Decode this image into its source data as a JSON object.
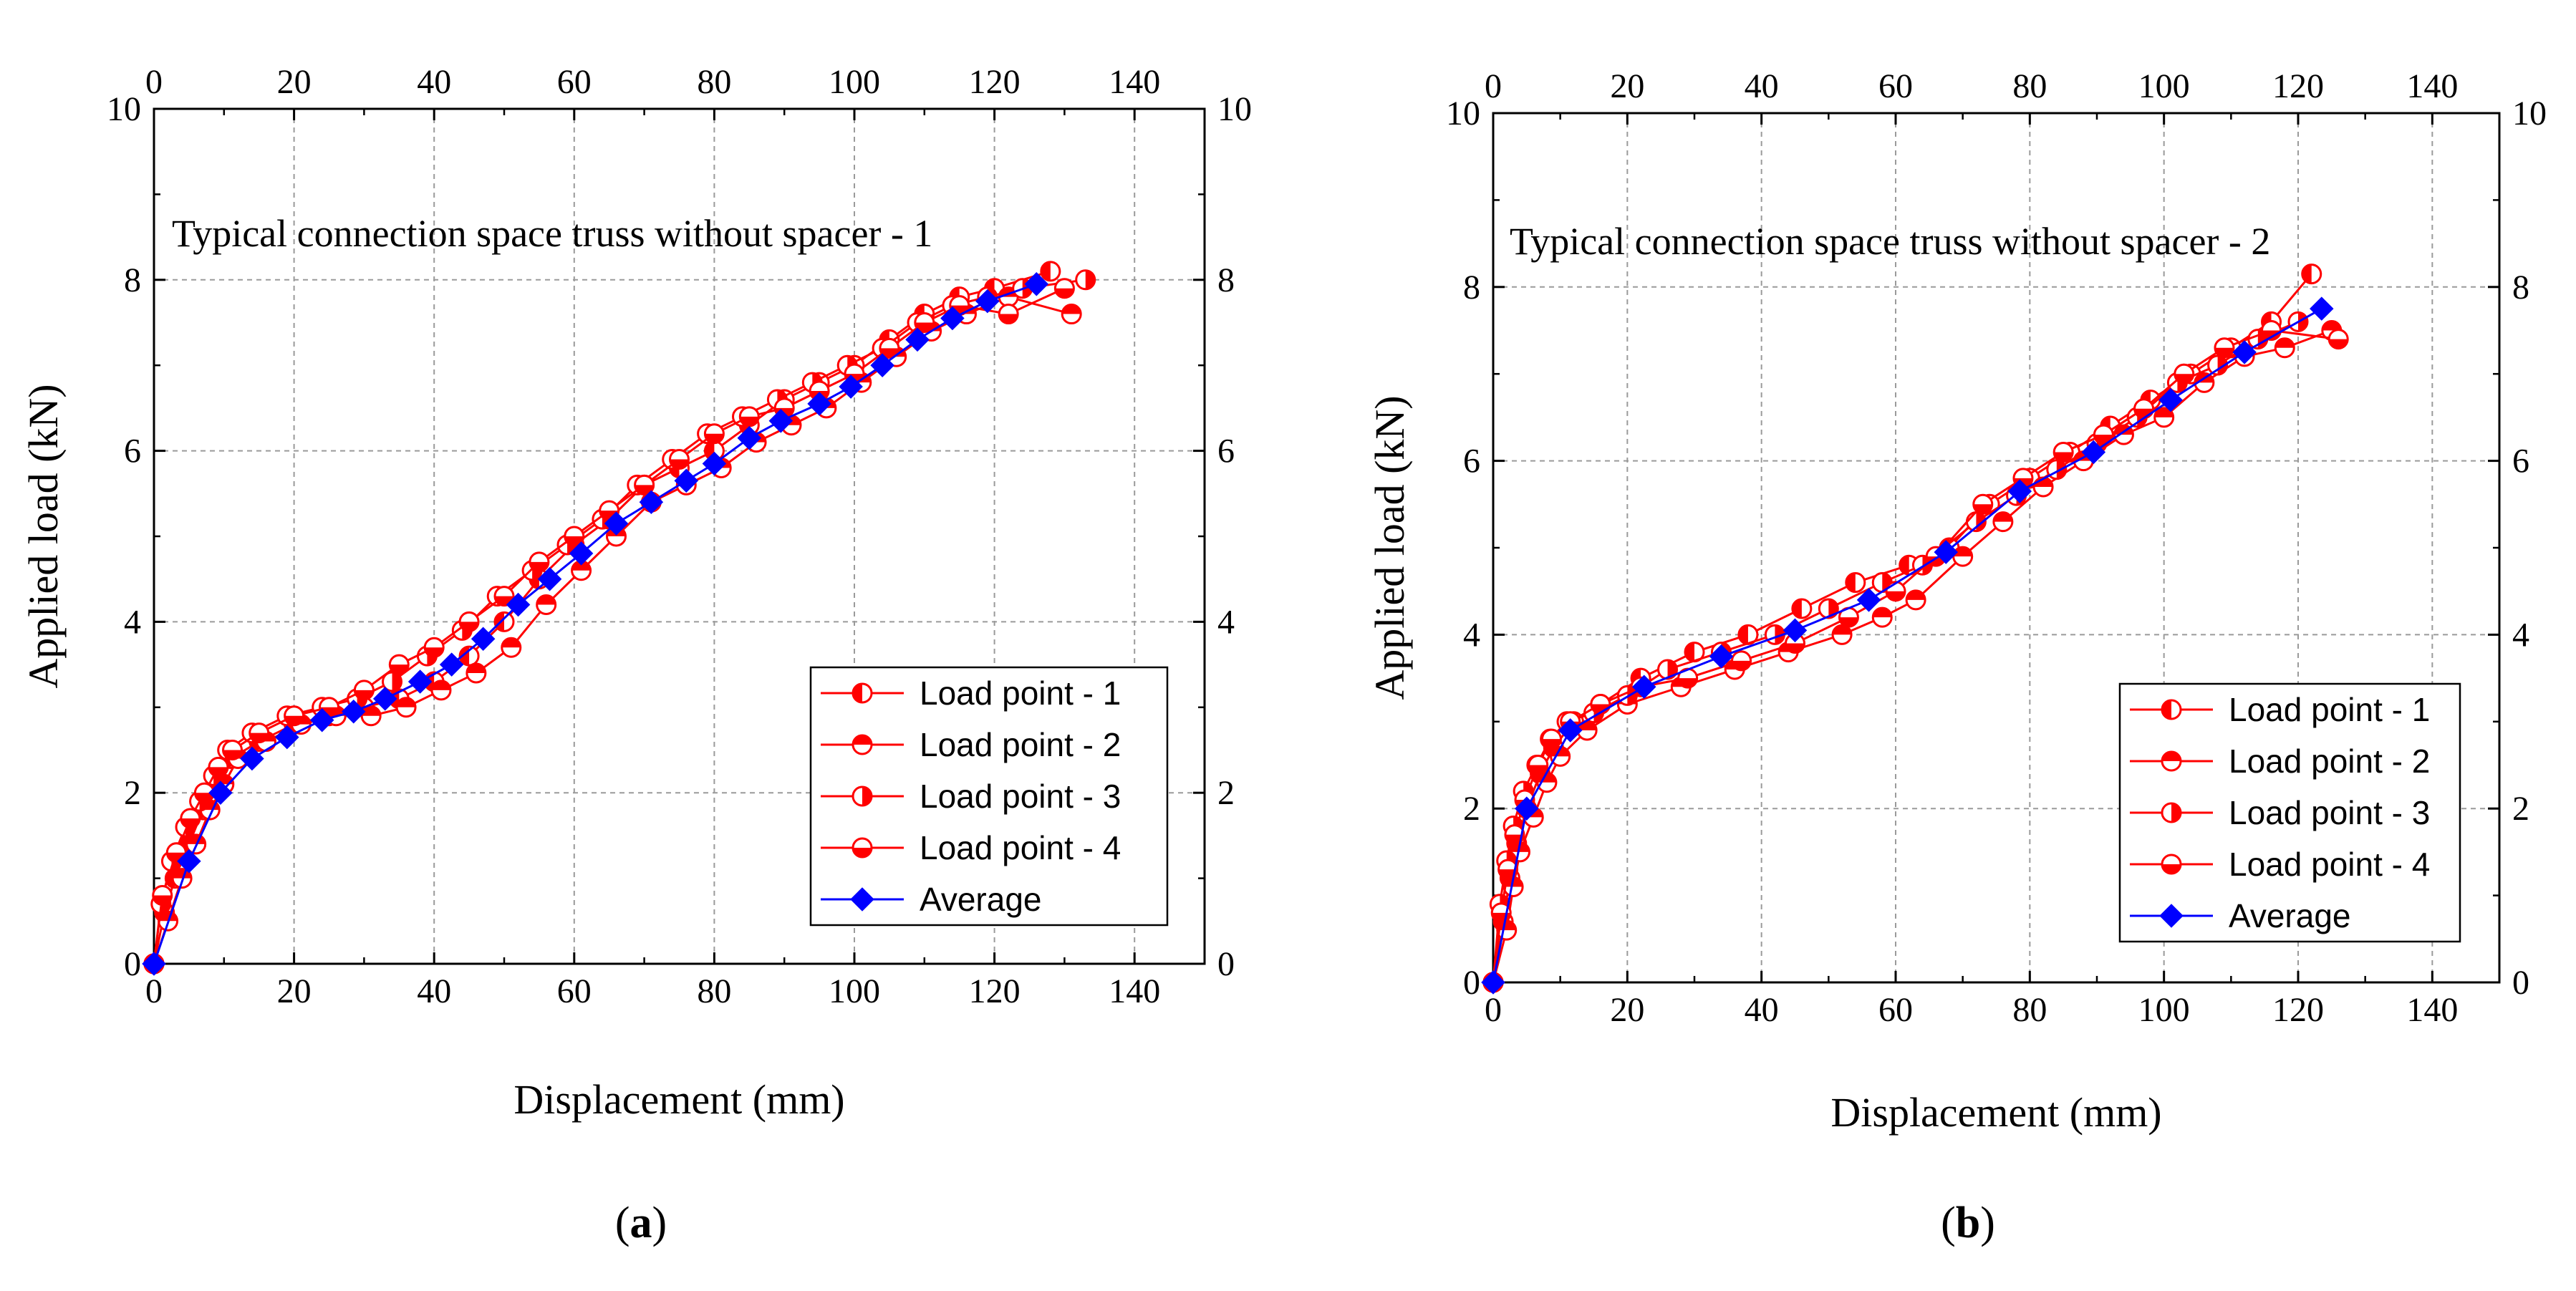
{
  "chart_data": [
    {
      "type": "line",
      "panel_label": "a",
      "title": "Typical connection space truss without spacer - 1",
      "xlabel": "Displacement (mm)",
      "ylabel": "Applied load (kN)",
      "xlim": [
        0,
        150
      ],
      "ylim": [
        0,
        10
      ],
      "x_ticks": [
        0,
        20,
        40,
        60,
        80,
        100,
        120,
        140
      ],
      "y_ticks": [
        0,
        2,
        4,
        6,
        8,
        10
      ],
      "grid": true,
      "legend_position": "lower-right",
      "series": [
        {
          "name": "Load point - 1",
          "color": "#ff0000",
          "marker": "circle-left-half",
          "points": [
            [
              0,
              0
            ],
            [
              1.5,
              0.6
            ],
            [
              3,
              1.0
            ],
            [
              5,
              1.4
            ],
            [
              7,
              1.8
            ],
            [
              9,
              2.1
            ],
            [
              11,
              2.4
            ],
            [
              15,
              2.6
            ],
            [
              20,
              2.8
            ],
            [
              25,
              2.9
            ],
            [
              30,
              3.0
            ],
            [
              35,
              3.1
            ],
            [
              40,
              3.3
            ],
            [
              45,
              3.6
            ],
            [
              50,
              4.0
            ],
            [
              55,
              4.5
            ],
            [
              60,
              4.9
            ],
            [
              65,
              5.2
            ],
            [
              70,
              5.6
            ],
            [
              75,
              5.8
            ],
            [
              80,
              6.0
            ],
            [
              85,
              6.3
            ],
            [
              90,
              6.6
            ],
            [
              95,
              6.8
            ],
            [
              100,
              7.0
            ],
            [
              105,
              7.3
            ],
            [
              110,
              7.6
            ],
            [
              115,
              7.8
            ],
            [
              120,
              7.9
            ],
            [
              128,
              8.1
            ]
          ]
        },
        {
          "name": "Load point - 2",
          "color": "#ff0000",
          "marker": "circle-top-half",
          "points": [
            [
              0,
              0
            ],
            [
              2,
              0.5
            ],
            [
              4,
              1.0
            ],
            [
              6,
              1.4
            ],
            [
              8,
              1.8
            ],
            [
              10,
              2.1
            ],
            [
              12,
              2.4
            ],
            [
              16,
              2.6
            ],
            [
              21,
              2.8
            ],
            [
              26,
              2.9
            ],
            [
              31,
              2.9
            ],
            [
              36,
              3.0
            ],
            [
              41,
              3.2
            ],
            [
              46,
              3.4
            ],
            [
              51,
              3.7
            ],
            [
              56,
              4.2
            ],
            [
              61,
              4.6
            ],
            [
              66,
              5.0
            ],
            [
              71,
              5.4
            ],
            [
              76,
              5.6
            ],
            [
              81,
              5.8
            ],
            [
              86,
              6.1
            ],
            [
              91,
              6.3
            ],
            [
              96,
              6.5
            ],
            [
              101,
              6.8
            ],
            [
              106,
              7.1
            ],
            [
              111,
              7.4
            ],
            [
              116,
              7.6
            ],
            [
              122,
              7.8
            ],
            [
              131,
              7.6
            ]
          ]
        },
        {
          "name": "Load point - 3",
          "color": "#ff0000",
          "marker": "circle-right-half",
          "points": [
            [
              0,
              0
            ],
            [
              1,
              0.7
            ],
            [
              2.5,
              1.2
            ],
            [
              4.5,
              1.6
            ],
            [
              6.5,
              1.9
            ],
            [
              8.5,
              2.2
            ],
            [
              10.5,
              2.5
            ],
            [
              14,
              2.7
            ],
            [
              19,
              2.9
            ],
            [
              24,
              3.0
            ],
            [
              29,
              3.1
            ],
            [
              34,
              3.3
            ],
            [
              39,
              3.6
            ],
            [
              44,
              3.9
            ],
            [
              49,
              4.3
            ],
            [
              54,
              4.6
            ],
            [
              59,
              4.9
            ],
            [
              64,
              5.2
            ],
            [
              69,
              5.6
            ],
            [
              74,
              5.9
            ],
            [
              79,
              6.2
            ],
            [
              84,
              6.4
            ],
            [
              89,
              6.6
            ],
            [
              94,
              6.8
            ],
            [
              99,
              7.0
            ],
            [
              104,
              7.2
            ],
            [
              109,
              7.5
            ],
            [
              114,
              7.7
            ],
            [
              119,
              7.8
            ],
            [
              124,
              7.9
            ],
            [
              133,
              8.0
            ]
          ]
        },
        {
          "name": "Load point - 4",
          "color": "#ff0000",
          "marker": "circle-bottom-half",
          "points": [
            [
              0,
              0
            ],
            [
              1.2,
              0.8
            ],
            [
              3.2,
              1.3
            ],
            [
              5.2,
              1.7
            ],
            [
              7.2,
              2.0
            ],
            [
              9.2,
              2.3
            ],
            [
              11.2,
              2.5
            ],
            [
              15,
              2.7
            ],
            [
              20,
              2.9
            ],
            [
              25,
              3.0
            ],
            [
              30,
              3.2
            ],
            [
              35,
              3.5
            ],
            [
              40,
              3.7
            ],
            [
              45,
              4.0
            ],
            [
              50,
              4.3
            ],
            [
              55,
              4.7
            ],
            [
              60,
              5.0
            ],
            [
              65,
              5.3
            ],
            [
              70,
              5.6
            ],
            [
              75,
              5.9
            ],
            [
              80,
              6.2
            ],
            [
              85,
              6.4
            ],
            [
              90,
              6.5
            ],
            [
              95,
              6.7
            ],
            [
              100,
              6.9
            ],
            [
              105,
              7.2
            ],
            [
              110,
              7.5
            ],
            [
              115,
              7.7
            ],
            [
              122,
              7.6
            ],
            [
              130,
              7.9
            ]
          ]
        },
        {
          "name": "Average",
          "color": "#0000ff",
          "marker": "diamond",
          "points": [
            [
              0,
              0
            ],
            [
              5,
              1.2
            ],
            [
              9.5,
              2.0
            ],
            [
              14,
              2.4
            ],
            [
              19,
              2.65
            ],
            [
              24,
              2.85
            ],
            [
              28.5,
              2.95
            ],
            [
              33,
              3.1
            ],
            [
              38,
              3.3
            ],
            [
              42.5,
              3.5
            ],
            [
              47,
              3.8
            ],
            [
              52,
              4.2
            ],
            [
              56.5,
              4.5
            ],
            [
              61,
              4.8
            ],
            [
              66,
              5.15
            ],
            [
              71,
              5.4
            ],
            [
              76,
              5.65
            ],
            [
              80,
              5.85
            ],
            [
              85,
              6.15
            ],
            [
              89.5,
              6.35
            ],
            [
              95,
              6.55
            ],
            [
              99.5,
              6.75
            ],
            [
              104,
              7.0
            ],
            [
              109,
              7.3
            ],
            [
              114,
              7.55
            ],
            [
              119,
              7.75
            ],
            [
              126,
              7.95
            ]
          ]
        }
      ]
    },
    {
      "type": "line",
      "panel_label": "b",
      "title": "Typical connection space truss without spacer - 2",
      "xlabel": "Displacement (mm)",
      "ylabel": "Applied load (kN)",
      "xlim": [
        0,
        150
      ],
      "ylim": [
        0,
        10
      ],
      "x_ticks": [
        0,
        20,
        40,
        60,
        80,
        100,
        120,
        140
      ],
      "y_ticks": [
        0,
        2,
        4,
        6,
        8,
        10
      ],
      "grid": true,
      "legend_position": "lower-right",
      "series": [
        {
          "name": "Load point - 1",
          "color": "#ff0000",
          "marker": "circle-left-half",
          "points": [
            [
              0,
              0
            ],
            [
              1.5,
              0.7
            ],
            [
              2.5,
              1.2
            ],
            [
              3.5,
              1.6
            ],
            [
              5,
              2.0
            ],
            [
              7,
              2.4
            ],
            [
              9,
              2.7
            ],
            [
              12,
              3.0
            ],
            [
              16,
              3.2
            ],
            [
              22,
              3.5
            ],
            [
              30,
              3.8
            ],
            [
              38,
              4.0
            ],
            [
              46,
              4.3
            ],
            [
              54,
              4.6
            ],
            [
              62,
              4.8
            ],
            [
              68,
              5.0
            ],
            [
              74,
              5.5
            ],
            [
              80,
              5.8
            ],
            [
              86,
              6.1
            ],
            [
              92,
              6.4
            ],
            [
              98,
              6.7
            ],
            [
              104,
              7.0
            ],
            [
              110,
              7.3
            ],
            [
              116,
              7.6
            ],
            [
              122,
              8.15
            ]
          ]
        },
        {
          "name": "Load point - 2",
          "color": "#ff0000",
          "marker": "circle-top-half",
          "points": [
            [
              0,
              0
            ],
            [
              2,
              0.6
            ],
            [
              3,
              1.1
            ],
            [
              4,
              1.5
            ],
            [
              6,
              1.9
            ],
            [
              8,
              2.3
            ],
            [
              10,
              2.6
            ],
            [
              14,
              2.9
            ],
            [
              20,
              3.2
            ],
            [
              28,
              3.4
            ],
            [
              36,
              3.6
            ],
            [
              44,
              3.8
            ],
            [
              52,
              4.0
            ],
            [
              58,
              4.2
            ],
            [
              63,
              4.4
            ],
            [
              70,
              4.9
            ],
            [
              76,
              5.3
            ],
            [
              82,
              5.7
            ],
            [
              88,
              6.0
            ],
            [
              94,
              6.3
            ],
            [
              100,
              6.5
            ],
            [
              106,
              6.9
            ],
            [
              112,
              7.2
            ],
            [
              118,
              7.3
            ],
            [
              125,
              7.5
            ]
          ]
        },
        {
          "name": "Load point - 3",
          "color": "#ff0000",
          "marker": "circle-right-half",
          "points": [
            [
              0,
              0
            ],
            [
              1,
              0.9
            ],
            [
              2,
              1.4
            ],
            [
              3,
              1.8
            ],
            [
              4.5,
              2.2
            ],
            [
              6.5,
              2.5
            ],
            [
              8.5,
              2.8
            ],
            [
              11,
              3.0
            ],
            [
              15,
              3.1
            ],
            [
              20,
              3.3
            ],
            [
              26,
              3.6
            ],
            [
              34,
              3.8
            ],
            [
              42,
              4.0
            ],
            [
              50,
              4.3
            ],
            [
              58,
              4.6
            ],
            [
              64,
              4.8
            ],
            [
              72,
              5.3
            ],
            [
              78,
              5.6
            ],
            [
              84,
              5.9
            ],
            [
              90,
              6.2
            ],
            [
              96,
              6.5
            ],
            [
              102,
              6.9
            ],
            [
              108,
              7.1
            ],
            [
              114,
              7.4
            ],
            [
              120,
              7.6
            ]
          ]
        },
        {
          "name": "Load point - 4",
          "color": "#ff0000",
          "marker": "circle-bottom-half",
          "points": [
            [
              0,
              0
            ],
            [
              1.2,
              0.8
            ],
            [
              2.2,
              1.3
            ],
            [
              3.2,
              1.7
            ],
            [
              4.7,
              2.1
            ],
            [
              6.7,
              2.5
            ],
            [
              8.7,
              2.8
            ],
            [
              11.5,
              3.0
            ],
            [
              16,
              3.2
            ],
            [
              22,
              3.4
            ],
            [
              29,
              3.5
            ],
            [
              37,
              3.7
            ],
            [
              45,
              3.9
            ],
            [
              53,
              4.2
            ],
            [
              60,
              4.5
            ],
            [
              66,
              4.9
            ],
            [
              73,
              5.5
            ],
            [
              79,
              5.8
            ],
            [
              85,
              6.1
            ],
            [
              91,
              6.3
            ],
            [
              97,
              6.6
            ],
            [
              103,
              7.0
            ],
            [
              109,
              7.3
            ],
            [
              116,
              7.5
            ],
            [
              126,
              7.4
            ]
          ]
        },
        {
          "name": "Average",
          "color": "#0000ff",
          "marker": "diamond",
          "points": [
            [
              0,
              0
            ],
            [
              5,
              2.0
            ],
            [
              11.5,
              2.9
            ],
            [
              22.5,
              3.4
            ],
            [
              34,
              3.75
            ],
            [
              45,
              4.05
            ],
            [
              56,
              4.4
            ],
            [
              67.5,
              4.95
            ],
            [
              78.5,
              5.65
            ],
            [
              89.5,
              6.1
            ],
            [
              101,
              6.7
            ],
            [
              112,
              7.25
            ],
            [
              123.5,
              7.75
            ]
          ]
        }
      ]
    }
  ]
}
